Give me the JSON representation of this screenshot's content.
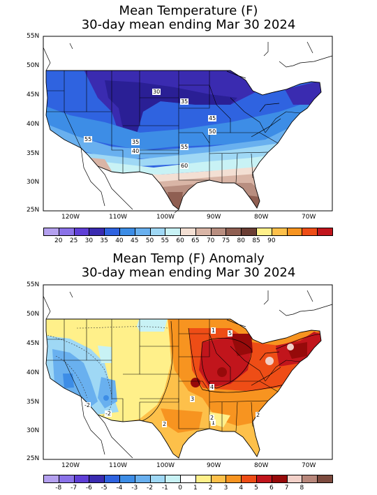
{
  "panels": [
    {
      "title_line1": "Mean Temperature (F)",
      "title_line2": "30-day mean ending Mar 30 2024",
      "lat_labels": [
        "55N",
        "50N",
        "45N",
        "40N",
        "35N",
        "30N",
        "25N"
      ],
      "lon_labels": [
        "120W",
        "110W",
        "100W",
        "90W",
        "80W",
        "70W"
      ],
      "contour_labels": [
        "30",
        "35",
        "45",
        "50",
        "55",
        "55",
        "35",
        "40",
        "60"
      ],
      "legend_colors": [
        "#b4a0ef",
        "#8a72e8",
        "#5f3fd6",
        "#3a2bb0",
        "#2f63e0",
        "#3d8de6",
        "#69b0ef",
        "#9fd8f5",
        "#c8f2f5",
        "#f3dfd3",
        "#d9b5a6",
        "#b88e80",
        "#8f5f52",
        "#6b3e34",
        "#fff08a",
        "#fdc04a",
        "#f79420",
        "#ee4d16",
        "#c1151c"
      ],
      "legend_labels": [
        "20",
        "25",
        "30",
        "35",
        "40",
        "45",
        "50",
        "55",
        "60",
        "65",
        "70",
        "75",
        "80",
        "85",
        "90"
      ]
    },
    {
      "title_line1": "Mean Temp (F) Anomaly",
      "title_line2": "30-day mean ending Mar 30 2024",
      "lat_labels": [
        "55N",
        "50N",
        "45N",
        "40N",
        "35N",
        "30N",
        "25N"
      ],
      "lon_labels": [
        "120W",
        "110W",
        "100W",
        "90W",
        "80W",
        "70W"
      ],
      "contour_labels": [
        "1",
        "4",
        "5",
        "3",
        "1",
        "2",
        "2",
        "-2",
        "-2",
        "2"
      ],
      "legend_colors": [
        "#b4a0ef",
        "#8a72e8",
        "#5f3fd6",
        "#3a2bb0",
        "#2f63e0",
        "#3d8de6",
        "#69b0ef",
        "#9fd8f5",
        "#c8f2f5",
        "#ffffff",
        "#fff08a",
        "#fdc04a",
        "#f79420",
        "#ee4d16",
        "#c1151c",
        "#960a0a",
        "#f2d0c8",
        "#b8877b",
        "#7c4a3e"
      ],
      "legend_labels": [
        "-8",
        "-7",
        "-6",
        "-5",
        "-4",
        "-3",
        "-2",
        "-1",
        "0",
        "1",
        "2",
        "3",
        "4",
        "5",
        "6",
        "7",
        "8"
      ]
    }
  ]
}
